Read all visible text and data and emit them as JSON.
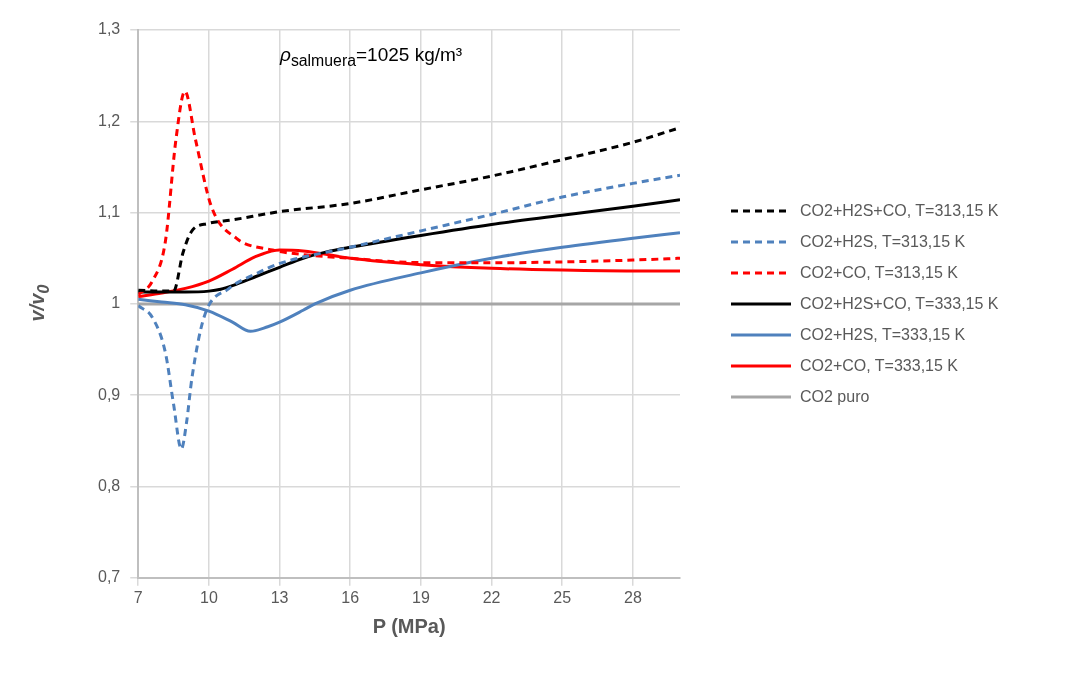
{
  "chart_data": {
    "type": "line",
    "xlabel": "P (MPa)",
    "ylabel": "v/v$_{0}$",
    "annotations": [
      "ρ$_{salmuera}$=1025 kg/m³"
    ],
    "xlim": [
      7,
      30
    ],
    "xticks": [
      7,
      10,
      13,
      16,
      19,
      22,
      25,
      28
    ],
    "ylim": [
      0.7,
      1.3
    ],
    "yticks": [
      {
        "value": 0.7,
        "label": "0,7"
      },
      {
        "value": 0.8,
        "label": "0,8"
      },
      {
        "value": 0.9,
        "label": "0,9"
      },
      1,
      {
        "value": 1.1,
        "label": "1,1"
      },
      {
        "value": 1.2,
        "label": "1,2"
      },
      {
        "value": 1.3,
        "label": "1,3"
      }
    ],
    "grid": true,
    "legend": "right",
    "series": [
      {
        "name": "CO2+H2S+CO, T=313,15 K",
        "color": "#000000",
        "line_style": "dashed",
        "x": [
          7,
          8,
          8.5,
          8.9,
          9.28,
          9.96,
          11,
          13,
          16,
          19,
          22,
          25,
          28,
          30
        ],
        "values": [
          1.015,
          1.014,
          1.014,
          1.056,
          1.08,
          1.088,
          1.092,
          1.101,
          1.11,
          1.125,
          1.14,
          1.158,
          1.177,
          1.193
        ]
      },
      {
        "name": "CO2+H2S, T=313,15 K",
        "color": "#4f81bd",
        "line_style": "dashed",
        "x": [
          7,
          7.6,
          8.15,
          8.5,
          8.83,
          9.05,
          9.28,
          9.8,
          10.86,
          12,
          12.97,
          16,
          19,
          22,
          25,
          28,
          30
        ],
        "values": [
          0.998,
          0.985,
          0.947,
          0.89,
          0.841,
          0.87,
          0.919,
          0.986,
          1.017,
          1.033,
          1.044,
          1.062,
          1.08,
          1.098,
          1.117,
          1.132,
          1.141
        ]
      },
      {
        "name": "CO2+CO, T=313,15 K",
        "color": "#ff0000",
        "line_style": "dashed",
        "x": [
          7,
          7.6,
          8.15,
          8.6,
          8.98,
          9.43,
          10.1,
          11.16,
          12.7,
          14,
          16,
          18,
          20,
          22,
          25,
          28,
          30
        ],
        "values": [
          1.01,
          1.025,
          1.068,
          1.18,
          1.233,
          1.18,
          1.107,
          1.072,
          1.059,
          1.054,
          1.05,
          1.046,
          1.045,
          1.045,
          1.046,
          1.048,
          1.05
        ]
      },
      {
        "name": "CO2+H2S+CO, T=333,15 K",
        "color": "#000000",
        "x": [
          7,
          8,
          9,
          10,
          10.5,
          11,
          12,
          13,
          14,
          15,
          16,
          19,
          22,
          25,
          28,
          30
        ],
        "values": [
          1.013,
          1.013,
          1.013,
          1.014,
          1.016,
          1.02,
          1.03,
          1.04,
          1.05,
          1.057,
          1.062,
          1.075,
          1.087,
          1.097,
          1.107,
          1.114
        ]
      },
      {
        "name": "CO2+H2S, T=333,15 K",
        "color": "#4f81bd",
        "x": [
          7,
          8,
          9,
          10,
          11,
          11.76,
          12.5,
          13,
          14,
          14.5,
          16,
          19,
          22,
          25,
          28,
          30
        ],
        "values": [
          1.005,
          1.002,
          0.999,
          0.992,
          0.98,
          0.97,
          0.975,
          0.98,
          0.993,
          1.0,
          1.015,
          1.034,
          1.05,
          1.062,
          1.072,
          1.078
        ]
      },
      {
        "name": "CO2+CO, T=333,15 K",
        "color": "#ff0000",
        "x": [
          7,
          8,
          9,
          10,
          11,
          12,
          13,
          14,
          16,
          19,
          22,
          25,
          28,
          30
        ],
        "values": [
          1.008,
          1.012,
          1.017,
          1.025,
          1.038,
          1.052,
          1.059,
          1.058,
          1.05,
          1.043,
          1.039,
          1.037,
          1.036,
          1.036
        ]
      },
      {
        "name": "CO2 puro",
        "color": "#a6a6a6",
        "x": [
          7,
          30
        ],
        "values": [
          1,
          1
        ]
      }
    ]
  }
}
